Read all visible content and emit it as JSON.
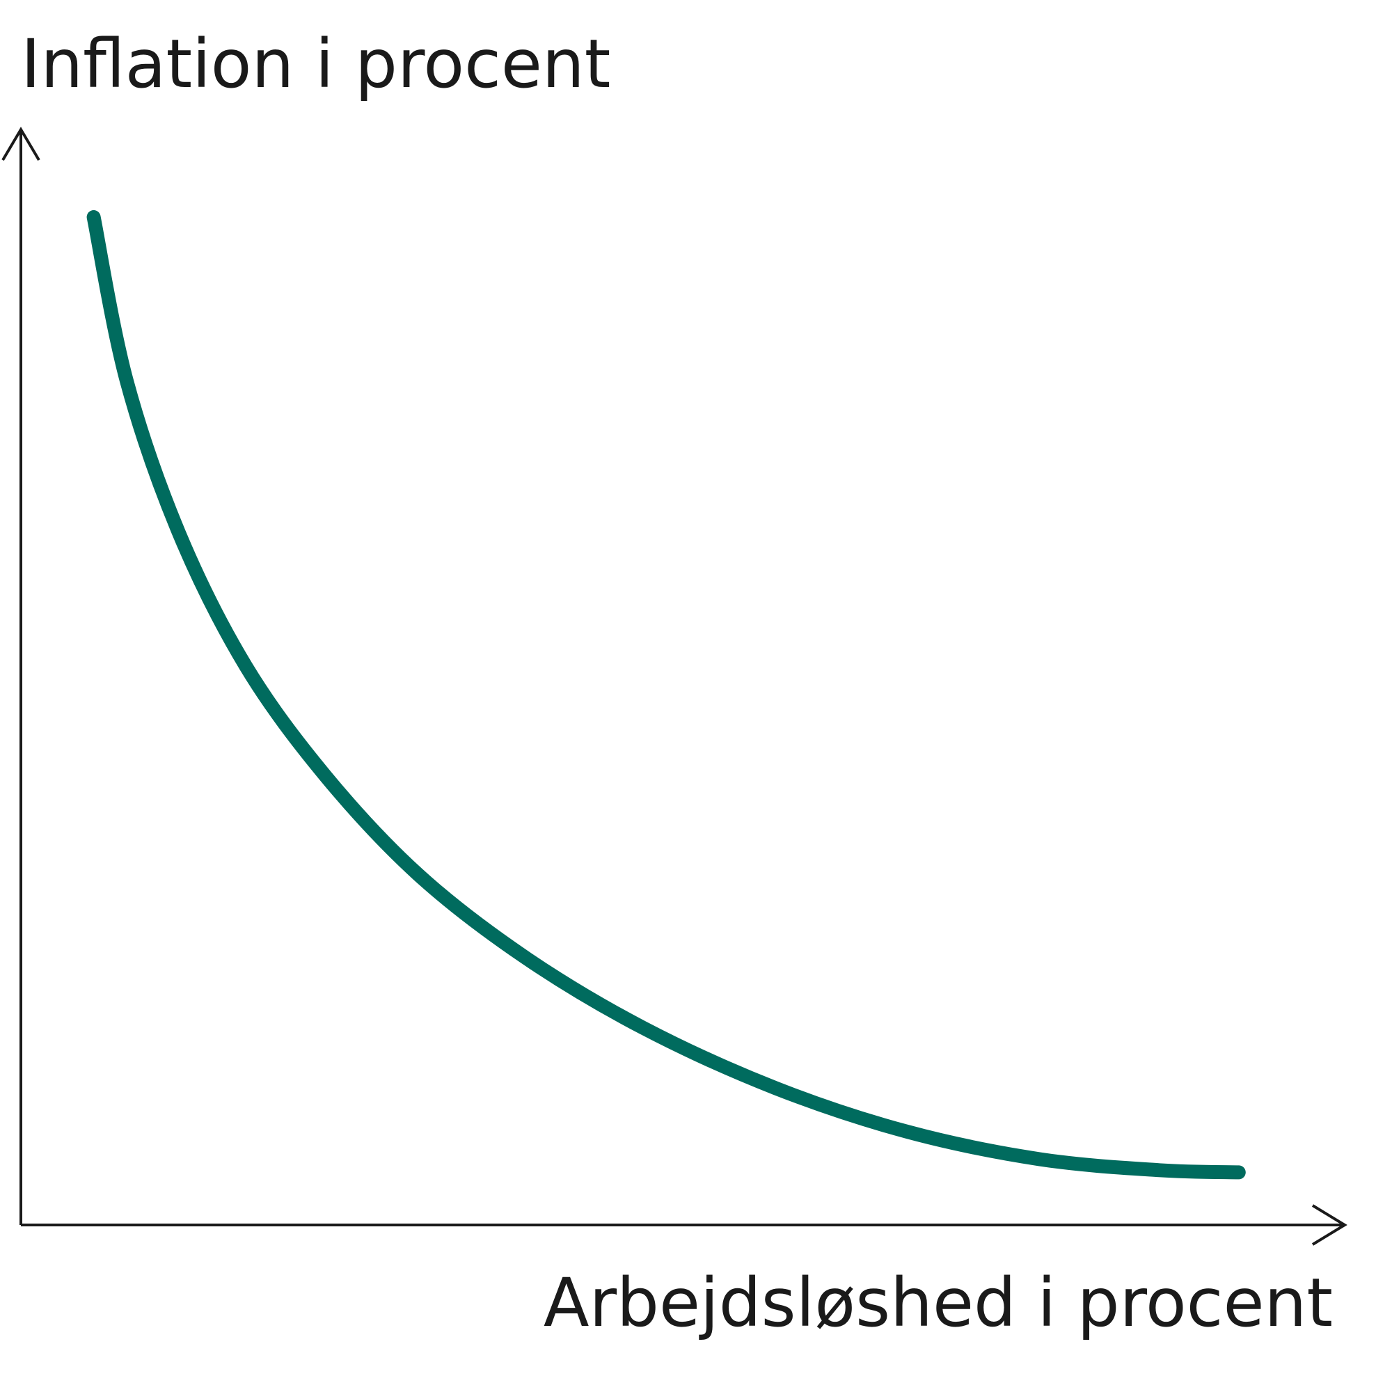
{
  "chart_data": {
    "type": "line",
    "ylabel": "Inflation i procent",
    "xlabel": "Arbejdsløshed i procent",
    "xlim": [
      0,
      100
    ],
    "ylim": [
      0,
      100
    ],
    "grid": false,
    "axis_ticks": false,
    "series": [
      {
        "color": "#006b5e",
        "x": [
          5.5,
          8,
          12,
          17,
          23,
          30,
          38,
          47,
          57,
          67,
          77,
          86,
          92
        ],
        "y": [
          92,
          77,
          63,
          51,
          41,
          32,
          24.5,
          18,
          12.5,
          8.5,
          6,
          5,
          4.8
        ]
      }
    ]
  }
}
